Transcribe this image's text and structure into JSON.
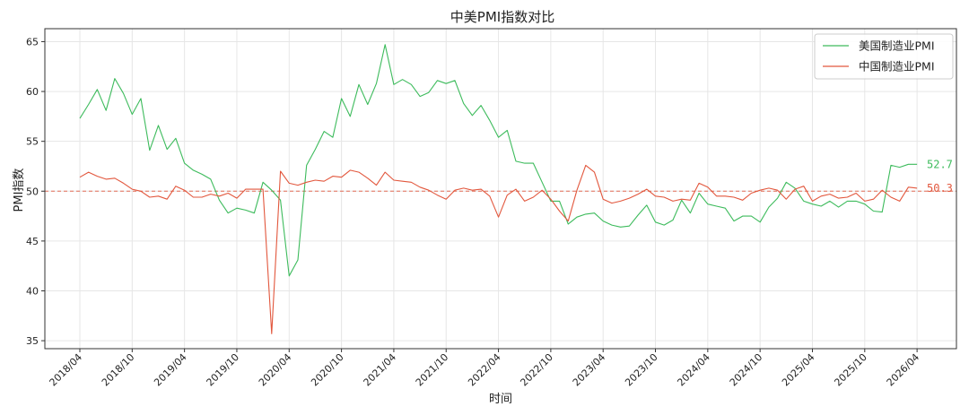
{
  "chart_data": {
    "type": "line",
    "title": "中美PMI指数对比",
    "xlabel": "时间",
    "ylabel": "PMI指数",
    "ylim": [
      34.2,
      66.3
    ],
    "yticks": [
      35,
      40,
      45,
      50,
      55,
      60,
      65
    ],
    "xticks": [
      "2018/04",
      "2018/10",
      "2019/04",
      "2019/10",
      "2020/04",
      "2020/10",
      "2021/04",
      "2021/10",
      "2022/04",
      "2022/10",
      "2023/04",
      "2023/10",
      "2024/04",
      "2024/10",
      "2025/04",
      "2025/10",
      "2026/04"
    ],
    "start_period": "2018/04",
    "reference_line": 50,
    "grid": true,
    "legend_position": "top-right",
    "series": [
      {
        "name": "美国制造业PMI",
        "color": "#3dbb5c",
        "end_label": "52.7",
        "values": [
          57.3,
          58.7,
          60.2,
          58.1,
          61.3,
          59.8,
          57.7,
          59.3,
          54.1,
          56.6,
          54.2,
          55.3,
          52.8,
          52.1,
          51.7,
          51.2,
          49.1,
          47.8,
          48.3,
          48.1,
          47.8,
          50.9,
          50.1,
          49.1,
          41.5,
          43.1,
          52.6,
          54.2,
          56.0,
          55.4,
          59.3,
          57.5,
          60.7,
          58.7,
          60.8,
          64.7,
          60.7,
          61.2,
          60.7,
          59.5,
          59.9,
          61.1,
          60.8,
          61.1,
          58.8,
          57.6,
          58.6,
          57.1,
          55.4,
          56.1,
          53.0,
          52.8,
          52.8,
          50.9,
          49.0,
          49.0,
          46.7,
          47.4,
          47.7,
          47.8,
          47.0,
          46.6,
          46.4,
          46.5,
          47.6,
          48.6,
          46.9,
          46.6,
          47.1,
          49.1,
          47.8,
          49.8,
          48.7,
          48.5,
          48.3,
          47.0,
          47.5,
          47.5,
          46.9,
          48.4,
          49.3,
          50.9,
          50.3,
          49.0,
          48.7,
          48.5,
          49.0,
          48.4,
          49.0,
          49.0,
          48.7,
          48.0,
          47.9,
          52.6,
          52.4,
          52.7,
          52.7
        ]
      },
      {
        "name": "中国制造业PMI",
        "color": "#e2573d",
        "end_label": "50.3",
        "values": [
          51.4,
          51.9,
          51.5,
          51.2,
          51.3,
          50.8,
          50.2,
          50.0,
          49.4,
          49.5,
          49.2,
          50.5,
          50.1,
          49.4,
          49.4,
          49.7,
          49.5,
          49.8,
          49.3,
          50.2,
          50.2,
          50.2,
          35.7,
          52.0,
          50.8,
          50.6,
          50.9,
          51.1,
          51.0,
          51.5,
          51.4,
          52.1,
          51.9,
          51.3,
          50.6,
          51.9,
          51.1,
          51.0,
          50.9,
          50.4,
          50.1,
          49.6,
          49.2,
          50.1,
          50.3,
          50.1,
          50.2,
          49.5,
          47.4,
          49.6,
          50.2,
          49.0,
          49.4,
          50.1,
          49.2,
          48.0,
          47.0,
          50.1,
          52.6,
          51.9,
          49.2,
          48.8,
          49.0,
          49.3,
          49.7,
          50.2,
          49.5,
          49.4,
          49.0,
          49.2,
          49.1,
          50.8,
          50.4,
          49.5,
          49.5,
          49.4,
          49.1,
          49.8,
          50.1,
          50.3,
          50.1,
          49.2,
          50.2,
          50.5,
          49.0,
          49.5,
          49.7,
          49.3,
          49.4,
          49.8,
          49.0,
          49.2,
          50.1,
          49.4,
          49.0,
          50.4,
          50.3
        ]
      }
    ]
  }
}
